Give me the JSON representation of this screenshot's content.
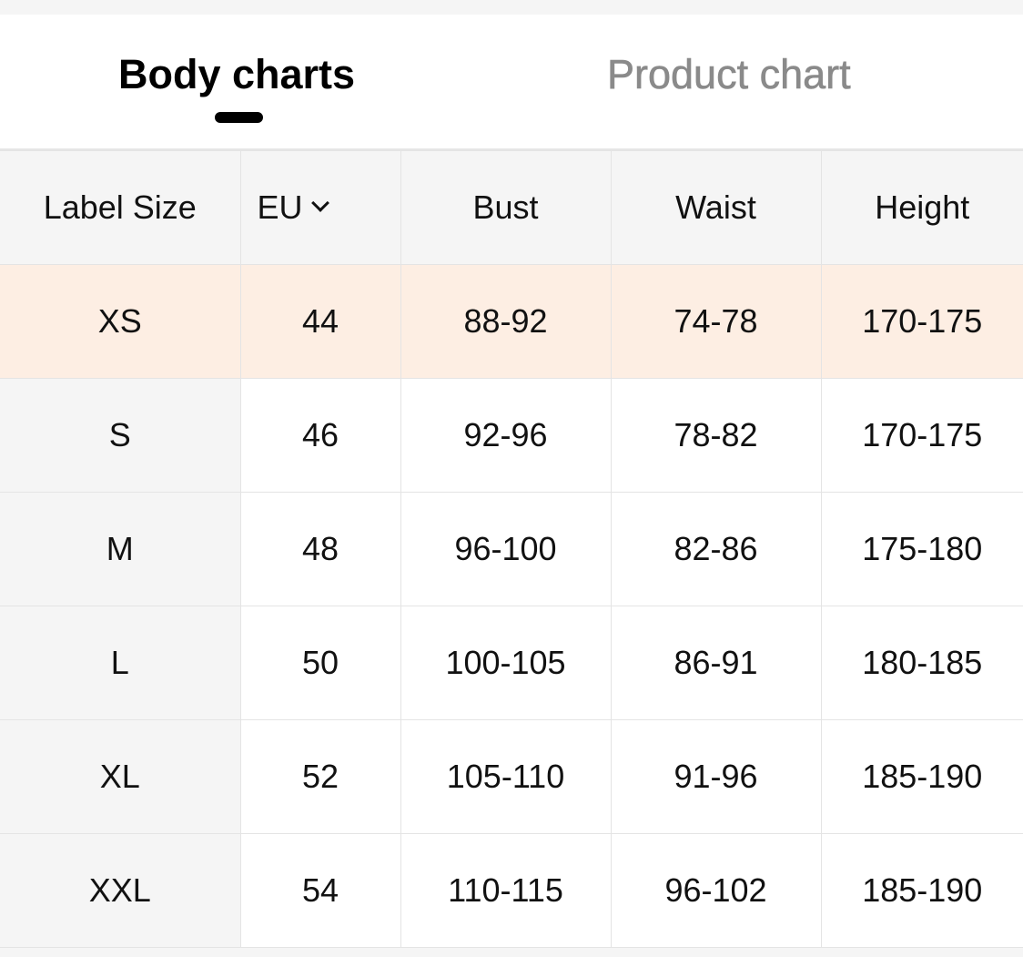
{
  "tabs": [
    {
      "label": "Body charts",
      "active": true
    },
    {
      "label": "Product chart",
      "active": false
    }
  ],
  "table": {
    "headers": [
      "Label Size",
      "EU",
      "Bust",
      "Waist",
      "Height"
    ],
    "unit_dropdown_icon": "chevron-down-icon",
    "highlight_row_color": "#fdeee3",
    "rows": [
      [
        "XS",
        "44",
        "88-92",
        "74-78",
        "170-175"
      ],
      [
        "S",
        "46",
        "92-96",
        "78-82",
        "170-175"
      ],
      [
        "M",
        "48",
        "96-100",
        "82-86",
        "175-180"
      ],
      [
        "L",
        "50",
        "100-105",
        "86-91",
        "180-185"
      ],
      [
        "XL",
        "52",
        "105-110",
        "91-96",
        "185-190"
      ],
      [
        "XXL",
        "54",
        "110-115",
        "96-102",
        "185-190"
      ]
    ],
    "highlighted_row": 0
  }
}
